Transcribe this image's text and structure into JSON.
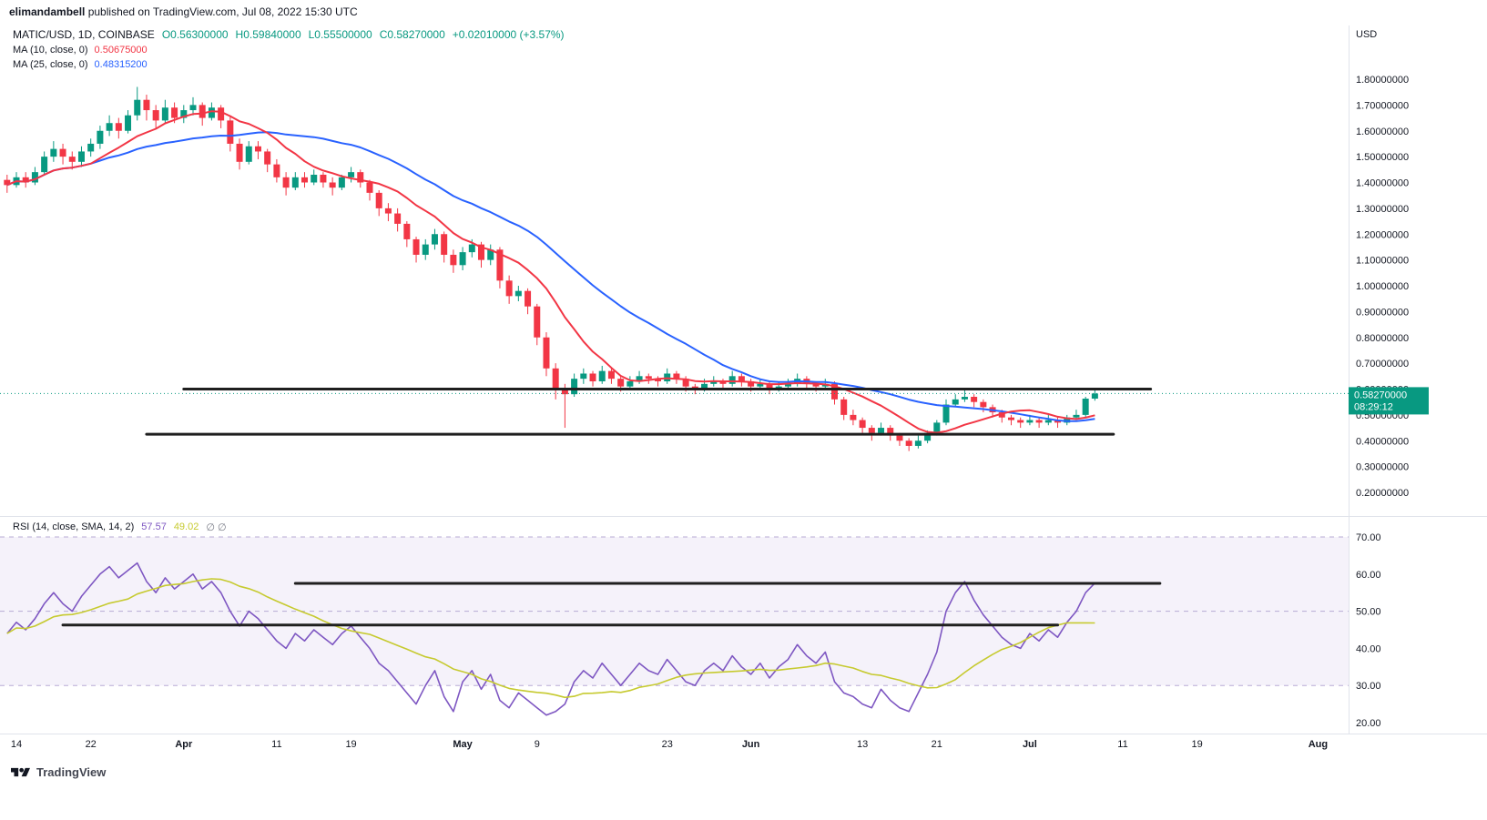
{
  "attribution": {
    "author": "elimandambell",
    "text": " published on TradingView.com, Jul 08, 2022 15:30 UTC"
  },
  "header": {
    "symbol": "MATIC/USD, 1D, COINBASE",
    "o": "O0.56300000",
    "h": "H0.59840000",
    "l": "L0.55500000",
    "c": "C0.58270000",
    "change": "+0.02010000 (+3.57%)",
    "ma10_label": "MA (10, close, 0)",
    "ma10_value": "0.50675000",
    "ma25_label": "MA (25, close, 0)",
    "ma25_value": "0.48315200"
  },
  "rsi_legend": {
    "label": "RSI (14, close, SMA, 14, 2)",
    "rsi_value": "57.57",
    "sma_value": "49.02",
    "hidden_values": "∅ ∅"
  },
  "price_scale": {
    "currency": "USD",
    "ticks": [
      "1.80000000",
      "1.70000000",
      "1.60000000",
      "1.50000000",
      "1.40000000",
      "1.30000000",
      "1.20000000",
      "1.10000000",
      "1.00000000",
      "0.90000000",
      "0.80000000",
      "0.70000000",
      "0.60000000",
      "0.50000000",
      "0.40000000",
      "0.30000000",
      "0.20000000"
    ],
    "badge_price": "0.58270000",
    "badge_countdown": "08:29:12"
  },
  "rsi_scale": {
    "ticks": [
      "70.00",
      "60.00",
      "50.00",
      "40.00",
      "30.00",
      "20.00"
    ]
  },
  "time_scale": {
    "ticks": [
      {
        "label": "14",
        "date": "2022-03-14"
      },
      {
        "label": "22",
        "date": "2022-03-22"
      },
      {
        "label": "Apr",
        "date": "2022-04-01"
      },
      {
        "label": "11",
        "date": "2022-04-11"
      },
      {
        "label": "19",
        "date": "2022-04-19"
      },
      {
        "label": "May",
        "date": "2022-05-01"
      },
      {
        "label": "9",
        "date": "2022-05-09"
      },
      {
        "label": "23",
        "date": "2022-05-23"
      },
      {
        "label": "Jun",
        "date": "2022-06-01"
      },
      {
        "label": "13",
        "date": "2022-06-13"
      },
      {
        "label": "21",
        "date": "2022-06-21"
      },
      {
        "label": "Jul",
        "date": "2022-07-01"
      },
      {
        "label": "11",
        "date": "2022-07-11"
      },
      {
        "label": "19",
        "date": "2022-07-19"
      },
      {
        "label": "Aug",
        "date": "2022-08-01"
      }
    ]
  },
  "footer": {
    "brand": "TradingView"
  },
  "colors": {
    "up": "#089981",
    "down": "#f23645",
    "ma10": "#f23645",
    "ma25": "#2962ff",
    "rsi": "#7e57c2",
    "rsi_sma": "#c6ca2f",
    "trendline": "#1f1f1f",
    "band_fill": "rgba(126,87,194,0.08)",
    "band_line": "#a192c8",
    "axis_text": "#131722",
    "separator": "#e0e3eb",
    "current_price": "#089981",
    "badge_text": "#ffffff"
  },
  "chart_data": {
    "type": "candlestick",
    "title": "MATIC/USD 1D COINBASE with MA(10), MA(25) and RSI(14) pane",
    "start_date": "2022-03-13",
    "price_axis_range": [
      0.2,
      1.8
    ],
    "rsi_axis_range": [
      20,
      70
    ],
    "current_price": 0.5827,
    "ma_periods": [
      10,
      25
    ],
    "rsi_sma_period": 14,
    "rsi_bands": [
      70,
      50,
      30
    ],
    "candles": [
      [
        1.41,
        1.43,
        1.36,
        1.39
      ],
      [
        1.39,
        1.44,
        1.38,
        1.42
      ],
      [
        1.42,
        1.44,
        1.38,
        1.4
      ],
      [
        1.4,
        1.46,
        1.39,
        1.44
      ],
      [
        1.44,
        1.52,
        1.43,
        1.5
      ],
      [
        1.5,
        1.56,
        1.48,
        1.53
      ],
      [
        1.53,
        1.55,
        1.47,
        1.5
      ],
      [
        1.5,
        1.52,
        1.45,
        1.48
      ],
      [
        1.48,
        1.54,
        1.46,
        1.52
      ],
      [
        1.52,
        1.57,
        1.5,
        1.55
      ],
      [
        1.55,
        1.62,
        1.53,
        1.6
      ],
      [
        1.6,
        1.66,
        1.58,
        1.63
      ],
      [
        1.63,
        1.65,
        1.57,
        1.6
      ],
      [
        1.6,
        1.68,
        1.59,
        1.66
      ],
      [
        1.66,
        1.77,
        1.64,
        1.72
      ],
      [
        1.72,
        1.74,
        1.64,
        1.68
      ],
      [
        1.68,
        1.7,
        1.61,
        1.64
      ],
      [
        1.64,
        1.72,
        1.63,
        1.69
      ],
      [
        1.69,
        1.71,
        1.63,
        1.65
      ],
      [
        1.65,
        1.7,
        1.63,
        1.68
      ],
      [
        1.68,
        1.73,
        1.66,
        1.7
      ],
      [
        1.7,
        1.71,
        1.62,
        1.65
      ],
      [
        1.65,
        1.71,
        1.64,
        1.69
      ],
      [
        1.69,
        1.7,
        1.61,
        1.64
      ],
      [
        1.64,
        1.66,
        1.52,
        1.55
      ],
      [
        1.55,
        1.57,
        1.45,
        1.48
      ],
      [
        1.48,
        1.56,
        1.47,
        1.54
      ],
      [
        1.54,
        1.56,
        1.49,
        1.52
      ],
      [
        1.52,
        1.53,
        1.44,
        1.47
      ],
      [
        1.47,
        1.49,
        1.4,
        1.42
      ],
      [
        1.42,
        1.44,
        1.35,
        1.38
      ],
      [
        1.38,
        1.44,
        1.37,
        1.42
      ],
      [
        1.42,
        1.44,
        1.38,
        1.4
      ],
      [
        1.4,
        1.45,
        1.39,
        1.43
      ],
      [
        1.43,
        1.44,
        1.38,
        1.4
      ],
      [
        1.4,
        1.42,
        1.35,
        1.38
      ],
      [
        1.38,
        1.43,
        1.37,
        1.42
      ],
      [
        1.42,
        1.46,
        1.4,
        1.44
      ],
      [
        1.44,
        1.45,
        1.38,
        1.4
      ],
      [
        1.4,
        1.41,
        1.33,
        1.36
      ],
      [
        1.36,
        1.37,
        1.27,
        1.3
      ],
      [
        1.3,
        1.32,
        1.25,
        1.28
      ],
      [
        1.28,
        1.3,
        1.21,
        1.24
      ],
      [
        1.24,
        1.25,
        1.15,
        1.18
      ],
      [
        1.18,
        1.19,
        1.09,
        1.12
      ],
      [
        1.12,
        1.18,
        1.1,
        1.16
      ],
      [
        1.16,
        1.22,
        1.14,
        1.2
      ],
      [
        1.2,
        1.21,
        1.09,
        1.12
      ],
      [
        1.12,
        1.14,
        1.05,
        1.08
      ],
      [
        1.08,
        1.15,
        1.06,
        1.13
      ],
      [
        1.13,
        1.18,
        1.11,
        1.16
      ],
      [
        1.16,
        1.17,
        1.07,
        1.1
      ],
      [
        1.1,
        1.16,
        1.08,
        1.14
      ],
      [
        1.14,
        1.15,
        0.99,
        1.02
      ],
      [
        1.02,
        1.04,
        0.93,
        0.96
      ],
      [
        0.96,
        1.0,
        0.94,
        0.98
      ],
      [
        0.98,
        0.99,
        0.89,
        0.92
      ],
      [
        0.92,
        0.93,
        0.77,
        0.8
      ],
      [
        0.8,
        0.82,
        0.65,
        0.68
      ],
      [
        0.68,
        0.7,
        0.56,
        0.6
      ],
      [
        0.6,
        0.62,
        0.45,
        0.58
      ],
      [
        0.58,
        0.66,
        0.57,
        0.64
      ],
      [
        0.64,
        0.68,
        0.62,
        0.66
      ],
      [
        0.66,
        0.67,
        0.61,
        0.63
      ],
      [
        0.63,
        0.69,
        0.62,
        0.67
      ],
      [
        0.67,
        0.68,
        0.62,
        0.64
      ],
      [
        0.64,
        0.65,
        0.59,
        0.61
      ],
      [
        0.61,
        0.65,
        0.6,
        0.63
      ],
      [
        0.63,
        0.67,
        0.62,
        0.65
      ],
      [
        0.65,
        0.66,
        0.62,
        0.64
      ],
      [
        0.64,
        0.65,
        0.61,
        0.63
      ],
      [
        0.63,
        0.68,
        0.62,
        0.66
      ],
      [
        0.66,
        0.67,
        0.62,
        0.64
      ],
      [
        0.64,
        0.65,
        0.59,
        0.61
      ],
      [
        0.61,
        0.62,
        0.58,
        0.6
      ],
      [
        0.6,
        0.64,
        0.59,
        0.62
      ],
      [
        0.62,
        0.65,
        0.61,
        0.63
      ],
      [
        0.63,
        0.64,
        0.6,
        0.62
      ],
      [
        0.62,
        0.67,
        0.61,
        0.65
      ],
      [
        0.65,
        0.66,
        0.61,
        0.63
      ],
      [
        0.63,
        0.64,
        0.59,
        0.61
      ],
      [
        0.61,
        0.64,
        0.6,
        0.62
      ],
      [
        0.62,
        0.63,
        0.58,
        0.6
      ],
      [
        0.6,
        0.63,
        0.59,
        0.61
      ],
      [
        0.61,
        0.64,
        0.6,
        0.62
      ],
      [
        0.62,
        0.66,
        0.61,
        0.64
      ],
      [
        0.64,
        0.65,
        0.6,
        0.62
      ],
      [
        0.62,
        0.63,
        0.59,
        0.61
      ],
      [
        0.61,
        0.64,
        0.6,
        0.62
      ],
      [
        0.62,
        0.63,
        0.54,
        0.56
      ],
      [
        0.56,
        0.57,
        0.48,
        0.5
      ],
      [
        0.5,
        0.52,
        0.46,
        0.48
      ],
      [
        0.48,
        0.49,
        0.43,
        0.45
      ],
      [
        0.45,
        0.46,
        0.4,
        0.43
      ],
      [
        0.43,
        0.47,
        0.42,
        0.45
      ],
      [
        0.45,
        0.46,
        0.4,
        0.42
      ],
      [
        0.42,
        0.43,
        0.38,
        0.4
      ],
      [
        0.4,
        0.41,
        0.36,
        0.38
      ],
      [
        0.38,
        0.42,
        0.37,
        0.4
      ],
      [
        0.4,
        0.44,
        0.39,
        0.43
      ],
      [
        0.43,
        0.48,
        0.42,
        0.47
      ],
      [
        0.47,
        0.56,
        0.46,
        0.54
      ],
      [
        0.54,
        0.58,
        0.53,
        0.56
      ],
      [
        0.56,
        0.6,
        0.55,
        0.57
      ],
      [
        0.57,
        0.58,
        0.53,
        0.55
      ],
      [
        0.55,
        0.56,
        0.51,
        0.53
      ],
      [
        0.53,
        0.54,
        0.49,
        0.51
      ],
      [
        0.51,
        0.52,
        0.47,
        0.49
      ],
      [
        0.49,
        0.5,
        0.46,
        0.48
      ],
      [
        0.48,
        0.49,
        0.45,
        0.47
      ],
      [
        0.47,
        0.5,
        0.46,
        0.48
      ],
      [
        0.48,
        0.49,
        0.45,
        0.47
      ],
      [
        0.47,
        0.5,
        0.46,
        0.48
      ],
      [
        0.48,
        0.49,
        0.45,
        0.47
      ],
      [
        0.47,
        0.5,
        0.46,
        0.49
      ],
      [
        0.49,
        0.52,
        0.48,
        0.5
      ],
      [
        0.5,
        0.57,
        0.49,
        0.563
      ],
      [
        0.563,
        0.5984,
        0.555,
        0.5827
      ]
    ],
    "rsi_values": [
      44,
      47,
      45,
      48,
      52,
      55,
      52,
      50,
      54,
      57,
      60,
      62,
      59,
      61,
      63,
      58,
      55,
      59,
      56,
      58,
      60,
      56,
      58,
      55,
      50,
      46,
      50,
      48,
      45,
      42,
      40,
      44,
      42,
      45,
      43,
      41,
      44,
      46,
      43,
      40,
      36,
      34,
      31,
      28,
      25,
      30,
      34,
      27,
      23,
      31,
      34,
      29,
      33,
      26,
      24,
      28,
      26,
      24,
      22,
      23,
      25,
      31,
      34,
      32,
      36,
      33,
      30,
      33,
      36,
      34,
      33,
      37,
      34,
      31,
      30,
      34,
      36,
      34,
      38,
      35,
      33,
      36,
      32,
      35,
      37,
      41,
      38,
      36,
      39,
      31,
      28,
      27,
      25,
      24,
      29,
      26,
      24,
      23,
      28,
      33,
      39,
      50,
      55,
      58,
      53,
      49,
      46,
      43,
      41,
      40,
      44,
      42,
      45,
      43,
      47,
      50,
      55,
      57.57
    ],
    "trendlines": [
      {
        "panel": "price",
        "value": 0.6,
        "from": "2022-04-01",
        "to": "2022-07-14"
      },
      {
        "panel": "price",
        "value": 0.425,
        "from": "2022-03-28",
        "to": "2022-07-10"
      },
      {
        "panel": "rsi",
        "value": 57.5,
        "from": "2022-04-13",
        "to": "2022-07-15"
      },
      {
        "panel": "rsi",
        "value": 46.3,
        "from": "2022-03-19",
        "to": "2022-07-04"
      }
    ]
  }
}
